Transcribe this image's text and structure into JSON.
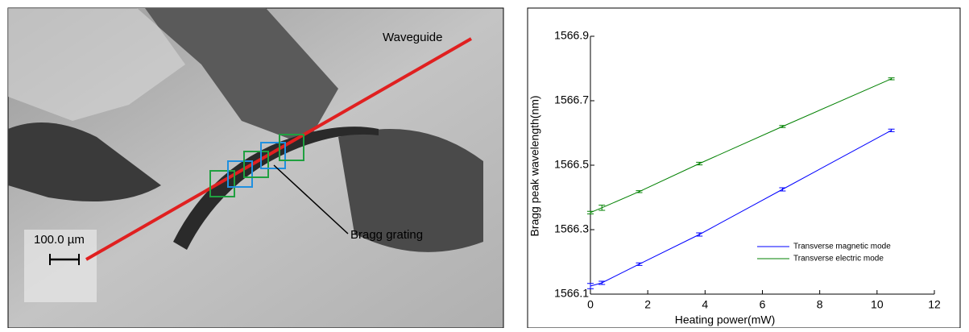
{
  "image": {
    "waveguide_label": "Waveguide",
    "grating_label": "Bragg grating",
    "scale_label": "100.0 µm"
  },
  "chart_data": {
    "type": "line",
    "xlabel": "Heating power(mW)",
    "ylabel": "Bragg peak wavelength(nm)",
    "x": [
      0,
      0.4,
      1.7,
      3.8,
      6.7,
      10.5
    ],
    "series": [
      {
        "name": "Transverse magnetic mode",
        "color": "#0000ff",
        "values": [
          1566.125,
          1566.135,
          1566.193,
          1566.285,
          1566.425,
          1566.608
        ],
        "errors": [
          0.008,
          0.005,
          0.004,
          0.005,
          0.005,
          0.004
        ]
      },
      {
        "name": "Transverse electric mode",
        "color": "#008000",
        "values": [
          1566.353,
          1566.368,
          1566.418,
          1566.505,
          1566.62,
          1566.768
        ],
        "errors": [
          0.004,
          0.008,
          0.003,
          0.004,
          0.003,
          0.003
        ]
      }
    ],
    "xlim": [
      0,
      12
    ],
    "xticks": [
      0,
      2,
      4,
      6,
      8,
      10,
      12
    ],
    "ylim": [
      1566.1,
      1566.9
    ],
    "yticks": [
      1566.1,
      1566.3,
      1566.5,
      1566.7,
      1566.9
    ],
    "legend": "lower right"
  }
}
